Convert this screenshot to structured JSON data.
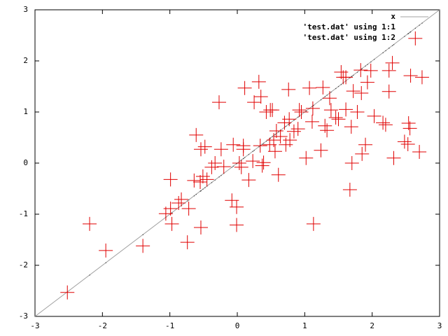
{
  "chart_data": {
    "type": "scatter",
    "xlim": [
      -3,
      3
    ],
    "ylim": [
      -3,
      3
    ],
    "xticks": [
      -3,
      -2,
      -1,
      0,
      1,
      2,
      3
    ],
    "yticks": [
      -3,
      -2,
      -1,
      0,
      1,
      2,
      3
    ],
    "legend": "top-right",
    "series": [
      {
        "name": "x",
        "kind": "line",
        "color": "#a0a0a0",
        "x": [
          -3,
          3
        ],
        "values": [
          -3,
          3
        ]
      },
      {
        "name": "'test.dat' using 1:1",
        "kind": "dots",
        "color": "#404040",
        "x": [
          -2.52,
          -2.19,
          -1.95,
          -1.4,
          -0.99,
          -1.06,
          -0.97,
          -0.99,
          -0.87,
          -0.83,
          -0.74,
          -0.72,
          -0.64,
          -0.61,
          -0.54,
          -0.48,
          -0.55,
          -0.51,
          -0.45,
          -0.54,
          -0.38,
          -0.33,
          -0.27,
          -0.24,
          -0.2,
          -0.06,
          -0.08,
          -0.01,
          -0.01,
          0.06,
          0.03,
          0.09,
          0.11,
          0.09,
          0.17,
          0.23,
          0.25,
          0.32,
          0.35,
          0.34,
          0.39,
          0.37,
          0.43,
          0.49,
          0.52,
          0.48,
          0.54,
          0.58,
          0.56,
          0.61,
          0.64,
          0.7,
          0.72,
          0.76,
          0.77,
          0.78,
          0.84,
          0.9,
          0.92,
          0.95,
          1.02,
          1.07,
          1.11,
          1.13,
          1.12,
          1.24,
          1.27,
          1.3,
          1.33,
          1.37,
          1.39,
          1.46,
          1.5,
          1.54,
          1.57,
          1.61,
          1.61,
          1.67,
          1.69,
          1.7,
          1.72,
          1.78,
          1.83,
          1.84,
          1.85,
          1.9,
          1.93,
          1.98,
          2.03,
          2.16,
          2.2,
          2.25,
          2.25,
          2.32,
          2.3,
          2.48,
          2.54,
          2.56,
          2.53,
          2.64,
          2.57,
          2.7,
          2.74
        ],
        "values": [
          -2.52,
          -2.19,
          -1.95,
          -1.4,
          -0.99,
          -1.06,
          -0.97,
          -0.99,
          -0.87,
          -0.83,
          -0.74,
          -0.72,
          -0.64,
          -0.61,
          -0.54,
          -0.48,
          -0.55,
          -0.51,
          -0.45,
          -0.54,
          -0.38,
          -0.33,
          -0.27,
          -0.24,
          -0.2,
          -0.06,
          -0.08,
          -0.01,
          -0.01,
          0.06,
          0.03,
          0.09,
          0.11,
          0.09,
          0.17,
          0.23,
          0.25,
          0.32,
          0.35,
          0.34,
          0.39,
          0.37,
          0.43,
          0.49,
          0.52,
          0.48,
          0.54,
          0.58,
          0.56,
          0.61,
          0.64,
          0.7,
          0.72,
          0.76,
          0.77,
          0.78,
          0.84,
          0.9,
          0.92,
          0.95,
          1.02,
          1.07,
          1.11,
          1.13,
          1.12,
          1.24,
          1.27,
          1.3,
          1.33,
          1.37,
          1.39,
          1.46,
          1.5,
          1.54,
          1.57,
          1.61,
          1.61,
          1.67,
          1.69,
          1.7,
          1.72,
          1.78,
          1.83,
          1.84,
          1.85,
          1.9,
          1.93,
          1.98,
          2.03,
          2.16,
          2.2,
          2.25,
          2.25,
          2.32,
          2.3,
          2.48,
          2.54,
          2.56,
          2.53,
          2.64,
          2.57,
          2.7,
          2.74
        ]
      },
      {
        "name": "'test.dat' using 1:2",
        "kind": "cross",
        "color": "#e00000",
        "x": [
          -2.52,
          -2.19,
          -1.95,
          -1.4,
          -0.99,
          -1.06,
          -0.97,
          -0.99,
          -0.87,
          -0.83,
          -0.74,
          -0.72,
          -0.64,
          -0.61,
          -0.54,
          -0.48,
          -0.55,
          -0.51,
          -0.45,
          -0.54,
          -0.38,
          -0.33,
          -0.27,
          -0.24,
          -0.2,
          -0.06,
          -0.08,
          -0.01,
          -0.01,
          0.06,
          0.03,
          0.09,
          0.11,
          0.09,
          0.17,
          0.23,
          0.25,
          0.32,
          0.35,
          0.34,
          0.39,
          0.37,
          0.43,
          0.49,
          0.52,
          0.48,
          0.54,
          0.58,
          0.56,
          0.61,
          0.64,
          0.7,
          0.72,
          0.76,
          0.77,
          0.78,
          0.84,
          0.9,
          0.92,
          0.95,
          1.02,
          1.07,
          1.11,
          1.13,
          1.12,
          1.24,
          1.27,
          1.3,
          1.33,
          1.37,
          1.39,
          1.46,
          1.5,
          1.54,
          1.57,
          1.61,
          1.61,
          1.67,
          1.69,
          1.7,
          1.72,
          1.78,
          1.83,
          1.84,
          1.85,
          1.9,
          1.93,
          1.98,
          2.03,
          2.16,
          2.2,
          2.25,
          2.25,
          2.32,
          2.3,
          2.48,
          2.54,
          2.56,
          2.53,
          2.64,
          2.57,
          2.7,
          2.74
        ],
        "values": [
          -2.53,
          -1.19,
          -1.71,
          -1.62,
          -0.32,
          -0.99,
          -1.19,
          -0.89,
          -0.78,
          -0.71,
          -1.55,
          -0.89,
          -0.34,
          0.55,
          0.27,
          0.32,
          -0.37,
          -0.26,
          -0.32,
          -1.26,
          -0.08,
          0.0,
          1.19,
          0.27,
          -0.07,
          0.36,
          -0.73,
          -0.86,
          -1.21,
          -0.08,
          0.0,
          0.27,
          1.47,
          0.34,
          -0.33,
          0.04,
          1.19,
          1.59,
          1.3,
          0.34,
          0.01,
          -0.05,
          1.0,
          1.04,
          1.04,
          0.36,
          0.45,
          0.63,
          0.23,
          -0.23,
          0.52,
          0.79,
          0.36,
          1.44,
          0.86,
          0.45,
          0.62,
          0.67,
          1.04,
          1.0,
          0.1,
          1.47,
          0.81,
          -1.19,
          1.07,
          0.25,
          1.48,
          0.73,
          0.64,
          1.27,
          1.04,
          0.89,
          0.86,
          1.78,
          1.68,
          1.05,
          1.68,
          -0.52,
          0.71,
          0.0,
          1.41,
          1.0,
          1.82,
          1.37,
          0.18,
          0.36,
          1.58,
          1.81,
          0.92,
          0.79,
          0.75,
          1.81,
          1.4,
          0.1,
          1.96,
          0.42,
          0.78,
          0.68,
          0.37,
          2.44,
          1.71,
          0.22,
          1.68
        ]
      }
    ]
  }
}
